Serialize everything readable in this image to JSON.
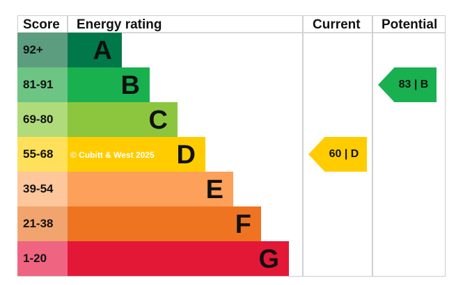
{
  "chart_data": {
    "type": "bar",
    "title": "",
    "headers": {
      "score": "Score",
      "rating": "Energy rating",
      "current": "Current",
      "potential": "Potential"
    },
    "bands": [
      {
        "score": "92+",
        "letter": "A",
        "color": "#00784a",
        "score_color": "#5c9d80"
      },
      {
        "score": "81-91",
        "letter": "B",
        "color": "#19b050",
        "score_color": "#6cc583"
      },
      {
        "score": "69-80",
        "letter": "C",
        "color": "#8cc63f",
        "score_color": "#b0db7a"
      },
      {
        "score": "55-68",
        "letter": "D",
        "color": "#ffcc00",
        "score_color": "#ffe05a"
      },
      {
        "score": "39-54",
        "letter": "E",
        "color": "#fca05a",
        "score_color": "#fdc69b"
      },
      {
        "score": "21-38",
        "letter": "F",
        "color": "#ee7422",
        "score_color": "#f2a46e"
      },
      {
        "score": "1-20",
        "letter": "G",
        "color": "#e31837",
        "score_color": "#ef6581"
      }
    ],
    "current": {
      "value": 60,
      "letter": "D",
      "label": "60 | D",
      "color": "#ffcc00"
    },
    "potential": {
      "value": 83,
      "letter": "B",
      "label": "83 | B",
      "color": "#19b050"
    },
    "watermark": "© Cubitt & West 2025"
  }
}
